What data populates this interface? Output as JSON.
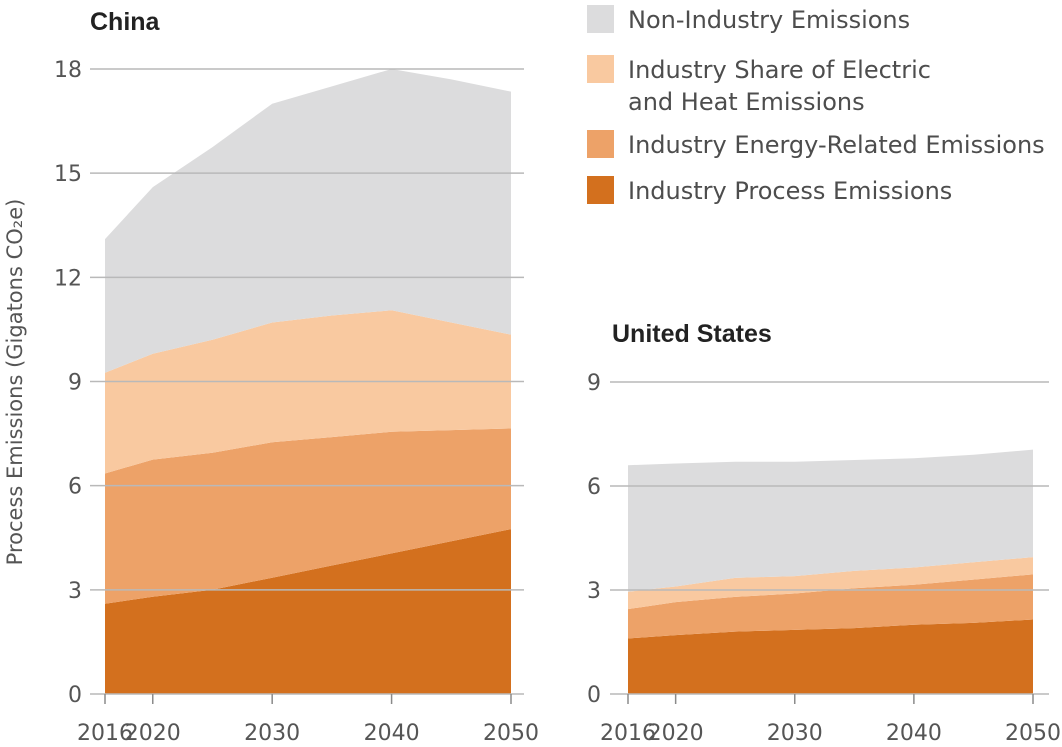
{
  "y_axis_label": "Process Emissions (Gigatons CO₂e)",
  "legend": [
    {
      "lines": [
        "Non-Industry Emissions"
      ],
      "color": "#dcdcdd"
    },
    {
      "lines": [
        "Industry Share of Electric",
        "and Heat Emissions"
      ],
      "color": "#f9c9a0"
    },
    {
      "lines": [
        "Industry Energy-Related Emissions"
      ],
      "color": "#eda268"
    },
    {
      "lines": [
        "Industry Process Emissions"
      ],
      "color": "#d3701e"
    }
  ],
  "chart_data": [
    {
      "type": "area",
      "stacked": true,
      "title": "China",
      "xlabel": "",
      "ylabel": "Process Emissions (Gigatons CO₂e)",
      "x": [
        2016,
        2020,
        2025,
        2030,
        2035,
        2040,
        2045,
        2050
      ],
      "xticks": [
        2016,
        2020,
        2030,
        2040,
        2050
      ],
      "yticks": [
        0,
        3,
        6,
        9,
        12,
        15,
        18
      ],
      "xlim": [
        2016,
        2050
      ],
      "ylim": [
        0,
        18
      ],
      "grid": true,
      "series": [
        {
          "name": "Industry Process Emissions",
          "cumulative": [
            2.6,
            2.8,
            3.0,
            3.35,
            3.7,
            4.05,
            4.4,
            4.75
          ]
        },
        {
          "name": "Industry Energy-Related Emissions",
          "cumulative": [
            6.35,
            6.75,
            6.95,
            7.25,
            7.4,
            7.55,
            7.6,
            7.65
          ]
        },
        {
          "name": "Industry Share of Electric and Heat Emissions",
          "cumulative": [
            9.25,
            9.8,
            10.2,
            10.7,
            10.9,
            11.05,
            10.7,
            10.35
          ]
        },
        {
          "name": "Non-Industry Emissions",
          "cumulative": [
            13.1,
            14.6,
            15.75,
            17.0,
            17.5,
            18.0,
            17.7,
            17.35
          ]
        }
      ]
    },
    {
      "type": "area",
      "stacked": true,
      "title": "United States",
      "xlabel": "",
      "ylabel": "",
      "x": [
        2016,
        2020,
        2025,
        2030,
        2035,
        2040,
        2045,
        2050
      ],
      "xticks": [
        2016,
        2020,
        2030,
        2040,
        2050
      ],
      "yticks": [
        0,
        3,
        6,
        9
      ],
      "xlim": [
        2016,
        2050
      ],
      "ylim": [
        0,
        9
      ],
      "grid": true,
      "series": [
        {
          "name": "Industry Process Emissions",
          "cumulative": [
            1.6,
            1.7,
            1.8,
            1.85,
            1.9,
            2.0,
            2.05,
            2.15
          ]
        },
        {
          "name": "Industry Energy-Related Emissions",
          "cumulative": [
            2.45,
            2.65,
            2.8,
            2.9,
            3.05,
            3.15,
            3.3,
            3.45
          ]
        },
        {
          "name": "Industry Share of Electric and Heat Emissions",
          "cumulative": [
            2.95,
            3.1,
            3.35,
            3.4,
            3.55,
            3.65,
            3.8,
            3.95
          ]
        },
        {
          "name": "Non-Industry Emissions",
          "cumulative": [
            6.6,
            6.65,
            6.7,
            6.7,
            6.75,
            6.8,
            6.9,
            7.05
          ]
        }
      ]
    }
  ]
}
